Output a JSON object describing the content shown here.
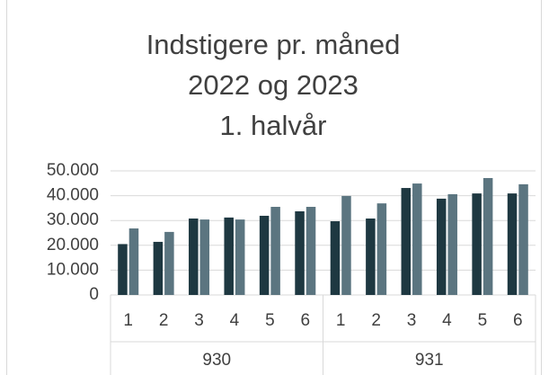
{
  "chart_data": {
    "type": "bar",
    "title": [
      "Indstigere pr. måned",
      "2022 og 2023",
      "1. halvår"
    ],
    "groups": [
      {
        "label": "930",
        "categories": [
          "1",
          "2",
          "3",
          "4",
          "5",
          "6"
        ]
      },
      {
        "label": "931",
        "categories": [
          "1",
          "2",
          "3",
          "4",
          "5",
          "6"
        ]
      }
    ],
    "series": [
      {
        "color": "#1e3841",
        "values": [
          20500,
          21400,
          30800,
          31200,
          31900,
          33700,
          29700,
          30800,
          43100,
          38800,
          40900,
          40900
        ]
      },
      {
        "color": "#5b7580",
        "values": [
          26800,
          25400,
          30400,
          30400,
          35500,
          35500,
          39900,
          36900,
          44900,
          40600,
          47100,
          44600
        ]
      }
    ],
    "ylim": [
      0,
      50000
    ],
    "yticks": [
      0,
      {
        "value": 10000,
        "label": "10.000"
      },
      {
        "value": 20000,
        "label": "20.000"
      },
      {
        "value": 30000,
        "label": "30.000"
      },
      {
        "value": 40000,
        "label": "40.000"
      },
      {
        "value": 50000,
        "label": "50.000"
      }
    ],
    "grid": true
  }
}
